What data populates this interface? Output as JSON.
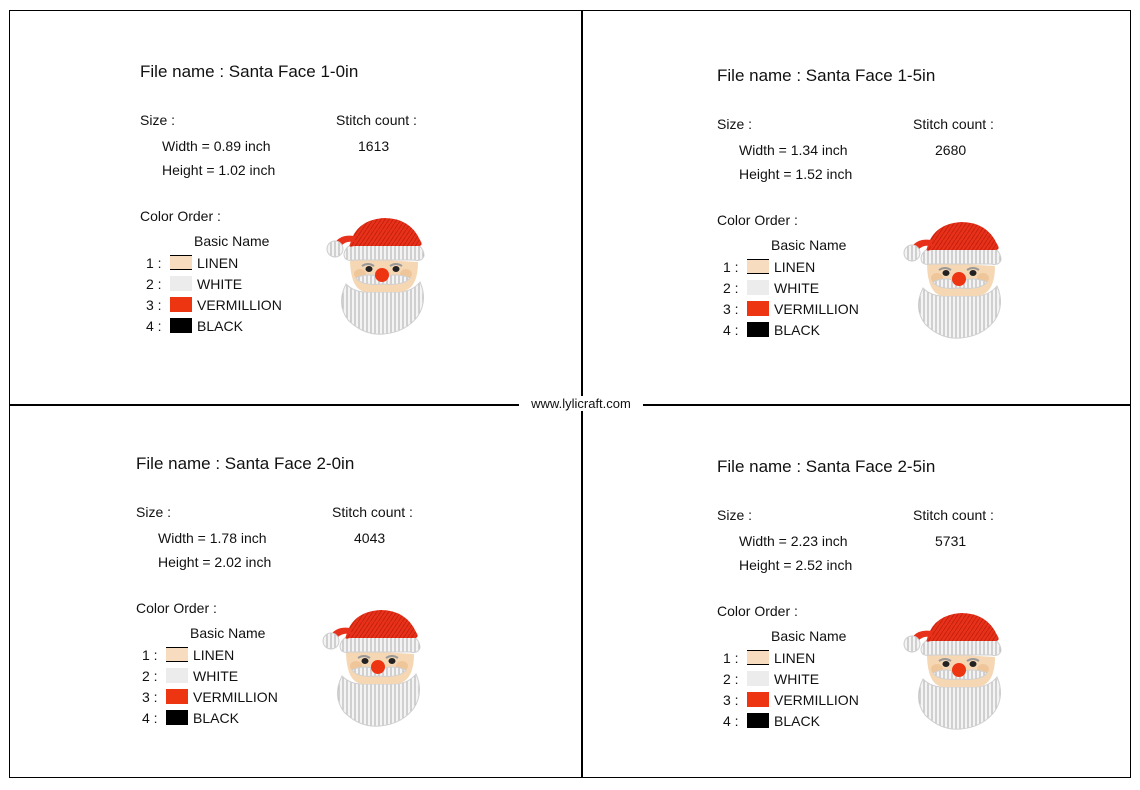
{
  "watermark": "www.lylicraft.com",
  "labels": {
    "size": "Size :",
    "stitch_count": "Stitch count :",
    "color_order": "Color Order :",
    "basic_name": "Basic Name"
  },
  "colors": [
    {
      "num": "1 :",
      "name": "LINEN",
      "hex": "#f7dcbf"
    },
    {
      "num": "2 :",
      "name": "WHITE",
      "hex": "#ececec"
    },
    {
      "num": "3 :",
      "name": "VERMILLION",
      "hex": "#ee3512"
    },
    {
      "num": "4 :",
      "name": "BLACK",
      "hex": "#000000"
    }
  ],
  "panels": [
    {
      "file_name": "File name : Santa Face 1-0in",
      "width": "Width  = 0.89 inch",
      "height": "Height = 1.02 inch",
      "stitch_count": "1613"
    },
    {
      "file_name": "File name : Santa Face 1-5in",
      "width": "Width  = 1.34 inch",
      "height": "Height = 1.52 inch",
      "stitch_count": "2680"
    },
    {
      "file_name": "File name : Santa Face 2-0in",
      "width": "Width  = 1.78 inch",
      "height": "Height = 2.02 inch",
      "stitch_count": "4043"
    },
    {
      "file_name": "File name : Santa Face 2-5in",
      "width": "Width  = 2.23 inch",
      "height": "Height = 2.52 inch",
      "stitch_count": "5731"
    }
  ]
}
